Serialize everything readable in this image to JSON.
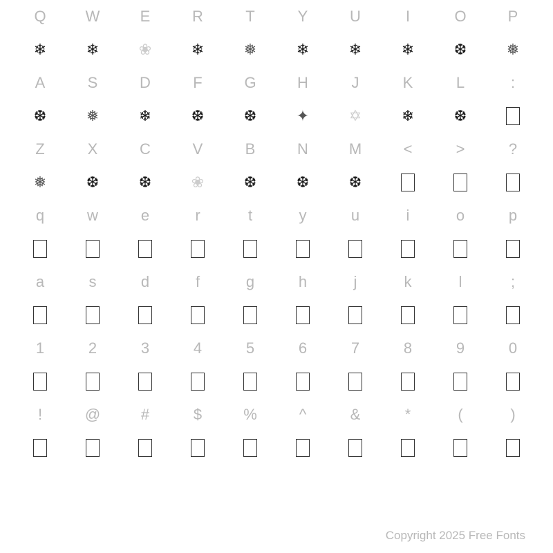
{
  "rows": [
    {
      "type": "label",
      "cells": [
        "Q",
        "W",
        "E",
        "R",
        "T",
        "Y",
        "U",
        "I",
        "O",
        "P"
      ]
    },
    {
      "type": "glyph",
      "cells": [
        {
          "g": "❄",
          "cls": "snowflake"
        },
        {
          "g": "❄",
          "cls": "snowflake"
        },
        {
          "g": "❀",
          "cls": "snowflake sf-outline"
        },
        {
          "g": "❄",
          "cls": "snowflake"
        },
        {
          "g": "❅",
          "cls": "snowflake sf-light"
        },
        {
          "g": "❄",
          "cls": "snowflake"
        },
        {
          "g": "❄",
          "cls": "snowflake"
        },
        {
          "g": "❄",
          "cls": "snowflake"
        },
        {
          "g": "❆",
          "cls": "snowflake"
        },
        {
          "g": "❅",
          "cls": "snowflake sf-light"
        }
      ]
    },
    {
      "type": "label",
      "cells": [
        "A",
        "S",
        "D",
        "F",
        "G",
        "H",
        "J",
        "K",
        "L",
        ":"
      ]
    },
    {
      "type": "glyph",
      "cells": [
        {
          "g": "❆",
          "cls": "snowflake"
        },
        {
          "g": "❅",
          "cls": "snowflake sf-light"
        },
        {
          "g": "❄",
          "cls": "snowflake"
        },
        {
          "g": "❆",
          "cls": "snowflake"
        },
        {
          "g": "❆",
          "cls": "snowflake"
        },
        {
          "g": "✦",
          "cls": "snowflake sf-light"
        },
        {
          "g": "✡",
          "cls": "snowflake sf-outline"
        },
        {
          "g": "❄",
          "cls": "snowflake"
        },
        {
          "g": "❆",
          "cls": "snowflake"
        },
        {
          "g": "",
          "cls": "empty-box"
        }
      ]
    },
    {
      "type": "label",
      "cells": [
        "Z",
        "X",
        "C",
        "V",
        "B",
        "N",
        "M",
        "<",
        ">",
        "?"
      ]
    },
    {
      "type": "glyph",
      "cells": [
        {
          "g": "❅",
          "cls": "snowflake sf-light"
        },
        {
          "g": "❆",
          "cls": "snowflake"
        },
        {
          "g": "❆",
          "cls": "snowflake"
        },
        {
          "g": "❀",
          "cls": "snowflake sf-outline"
        },
        {
          "g": "❆",
          "cls": "snowflake"
        },
        {
          "g": "❆",
          "cls": "snowflake"
        },
        {
          "g": "❆",
          "cls": "snowflake"
        },
        {
          "g": "",
          "cls": "empty-box"
        },
        {
          "g": "",
          "cls": "empty-box"
        },
        {
          "g": "",
          "cls": "empty-box"
        }
      ]
    },
    {
      "type": "label",
      "cells": [
        "q",
        "w",
        "e",
        "r",
        "t",
        "y",
        "u",
        "i",
        "o",
        "p"
      ]
    },
    {
      "type": "glyph",
      "cells": [
        {
          "g": "",
          "cls": "empty-box"
        },
        {
          "g": "",
          "cls": "empty-box"
        },
        {
          "g": "",
          "cls": "empty-box"
        },
        {
          "g": "",
          "cls": "empty-box"
        },
        {
          "g": "",
          "cls": "empty-box"
        },
        {
          "g": "",
          "cls": "empty-box"
        },
        {
          "g": "",
          "cls": "empty-box"
        },
        {
          "g": "",
          "cls": "empty-box"
        },
        {
          "g": "",
          "cls": "empty-box"
        },
        {
          "g": "",
          "cls": "empty-box"
        }
      ]
    },
    {
      "type": "label",
      "cells": [
        "a",
        "s",
        "d",
        "f",
        "g",
        "h",
        "j",
        "k",
        "l",
        ";"
      ]
    },
    {
      "type": "glyph",
      "cells": [
        {
          "g": "",
          "cls": "empty-box"
        },
        {
          "g": "",
          "cls": "empty-box"
        },
        {
          "g": "",
          "cls": "empty-box"
        },
        {
          "g": "",
          "cls": "empty-box"
        },
        {
          "g": "",
          "cls": "empty-box"
        },
        {
          "g": "",
          "cls": "empty-box"
        },
        {
          "g": "",
          "cls": "empty-box"
        },
        {
          "g": "",
          "cls": "empty-box"
        },
        {
          "g": "",
          "cls": "empty-box"
        },
        {
          "g": "",
          "cls": "empty-box"
        }
      ]
    },
    {
      "type": "label",
      "cells": [
        "1",
        "2",
        "3",
        "4",
        "5",
        "6",
        "7",
        "8",
        "9",
        "0"
      ]
    },
    {
      "type": "glyph",
      "cells": [
        {
          "g": "",
          "cls": "empty-box"
        },
        {
          "g": "",
          "cls": "empty-box"
        },
        {
          "g": "",
          "cls": "empty-box"
        },
        {
          "g": "",
          "cls": "empty-box"
        },
        {
          "g": "",
          "cls": "empty-box"
        },
        {
          "g": "",
          "cls": "empty-box"
        },
        {
          "g": "",
          "cls": "empty-box"
        },
        {
          "g": "",
          "cls": "empty-box"
        },
        {
          "g": "",
          "cls": "empty-box"
        },
        {
          "g": "",
          "cls": "empty-box"
        }
      ]
    },
    {
      "type": "label",
      "cells": [
        "!",
        "@",
        "#",
        "$",
        "%",
        "^",
        "&",
        "*",
        "(",
        ")"
      ]
    },
    {
      "type": "glyph",
      "cells": [
        {
          "g": "",
          "cls": "empty-box"
        },
        {
          "g": "",
          "cls": "empty-box"
        },
        {
          "g": "",
          "cls": "empty-box"
        },
        {
          "g": "",
          "cls": "empty-box"
        },
        {
          "g": "",
          "cls": "empty-box"
        },
        {
          "g": "",
          "cls": "empty-box"
        },
        {
          "g": "",
          "cls": "empty-box"
        },
        {
          "g": "",
          "cls": "empty-box"
        },
        {
          "g": "",
          "cls": "empty-box"
        },
        {
          "g": "",
          "cls": "empty-box"
        }
      ]
    }
  ],
  "footer": "Copyright 2025 Free Fonts"
}
